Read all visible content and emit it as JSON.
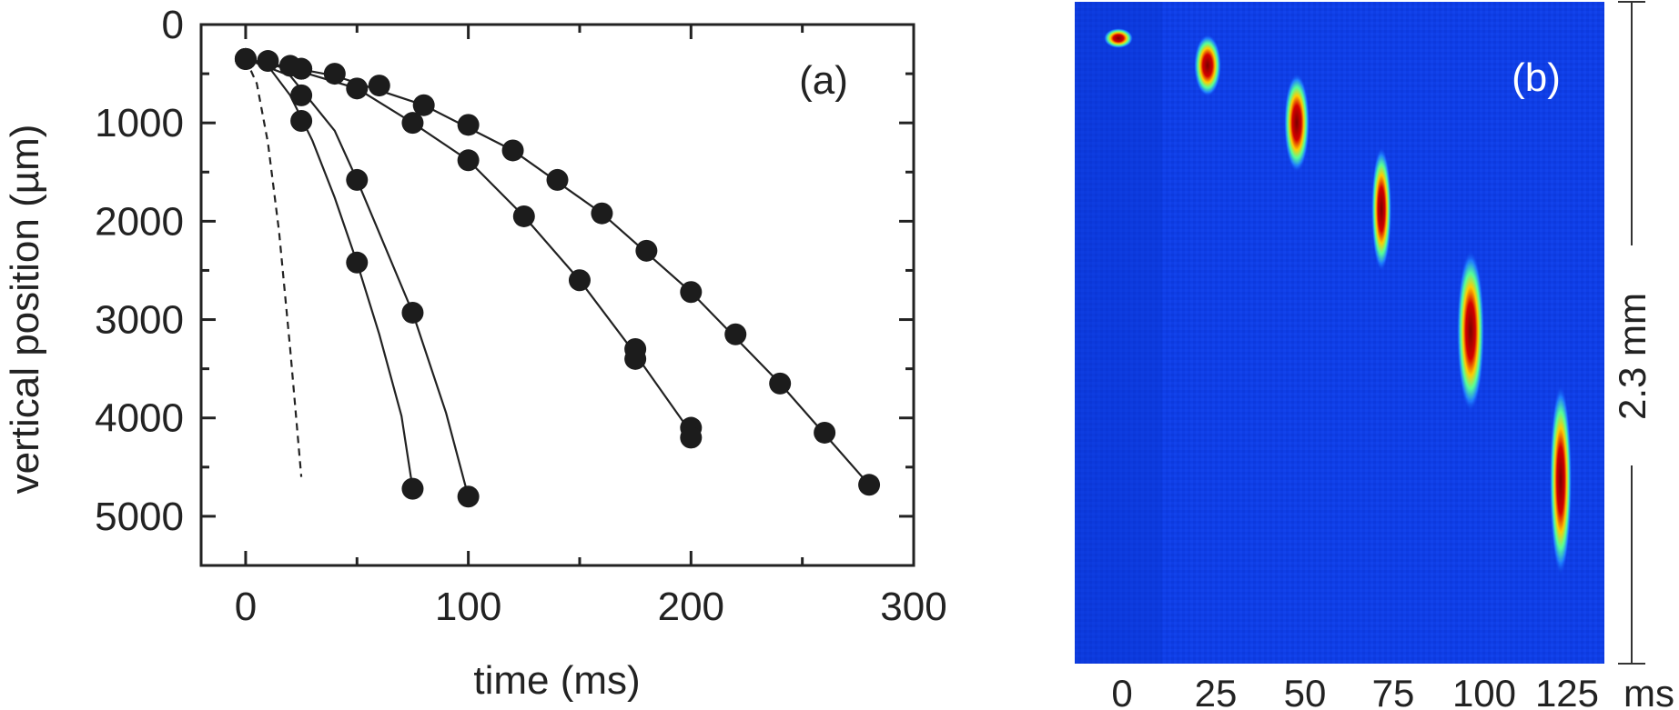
{
  "chart_data": [
    {
      "panel": "(a)",
      "type": "scatter",
      "panel_label": "(a)",
      "xlabel": "time (ms)",
      "ylabel": "vertical position (µm)",
      "xlim": [
        -20,
        300
      ],
      "ylim": [
        5500,
        0
      ],
      "y_inverted": true,
      "x_ticks": [
        0,
        100,
        200,
        300
      ],
      "y_ticks": [
        0,
        1000,
        2000,
        3000,
        4000,
        5000
      ],
      "series": [
        {
          "points": [
            [
              0,
              350
            ],
            [
              10,
              370
            ],
            [
              25,
              720
            ],
            [
              25,
              980
            ],
            [
              50,
              2420
            ],
            [
              75,
              4720
            ]
          ]
        },
        {
          "points": [
            [
              0,
              350
            ],
            [
              25,
              450
            ],
            [
              50,
              1580
            ],
            [
              75,
              2930
            ],
            [
              100,
              4800
            ]
          ]
        },
        {
          "points": [
            [
              0,
              350
            ],
            [
              20,
              420
            ],
            [
              50,
              650
            ],
            [
              75,
              1000
            ],
            [
              100,
              1380
            ],
            [
              125,
              1950
            ],
            [
              150,
              2600
            ],
            [
              175,
              3300
            ],
            [
              175,
              3400
            ],
            [
              200,
              4100
            ],
            [
              200,
              4200
            ]
          ]
        },
        {
          "points": [
            [
              0,
              350
            ],
            [
              25,
              450
            ],
            [
              40,
              500
            ],
            [
              60,
              620
            ],
            [
              80,
              820
            ],
            [
              100,
              1020
            ],
            [
              120,
              1280
            ],
            [
              140,
              1580
            ],
            [
              160,
              1920
            ],
            [
              180,
              2300
            ],
            [
              200,
              2720
            ],
            [
              220,
              3150
            ],
            [
              240,
              3650
            ],
            [
              260,
              4150
            ],
            [
              280,
              4680
            ]
          ]
        }
      ],
      "fit_curves": [
        {
          "style": "solid",
          "points": [
            [
              0,
              350
            ],
            [
              10,
              420
            ],
            [
              20,
              720
            ],
            [
              30,
              1180
            ],
            [
              40,
              1760
            ],
            [
              50,
              2420
            ],
            [
              60,
              3150
            ],
            [
              70,
              3980
            ],
            [
              75,
              4720
            ]
          ]
        },
        {
          "style": "solid",
          "points": [
            [
              0,
              350
            ],
            [
              20,
              520
            ],
            [
              40,
              1080
            ],
            [
              50,
              1580
            ],
            [
              60,
              2120
            ],
            [
              75,
              2930
            ],
            [
              90,
              3950
            ],
            [
              100,
              4800
            ]
          ]
        },
        {
          "style": "solid",
          "points": [
            [
              0,
              350
            ],
            [
              25,
              480
            ],
            [
              50,
              650
            ],
            [
              75,
              1000
            ],
            [
              100,
              1380
            ],
            [
              125,
              1950
            ],
            [
              150,
              2600
            ],
            [
              175,
              3350
            ],
            [
              200,
              4150
            ]
          ]
        },
        {
          "style": "solid",
          "points": [
            [
              0,
              350
            ],
            [
              40,
              520
            ],
            [
              80,
              820
            ],
            [
              120,
              1280
            ],
            [
              160,
              1920
            ],
            [
              200,
              2720
            ],
            [
              240,
              3650
            ],
            [
              280,
              4680
            ]
          ]
        },
        {
          "style": "dashed",
          "points": [
            [
              0,
              350
            ],
            [
              5,
              600
            ],
            [
              10,
              1200
            ],
            [
              15,
              2100
            ],
            [
              20,
              3300
            ],
            [
              25,
              4600
            ]
          ]
        }
      ]
    },
    {
      "panel": "(b)",
      "type": "heatmap",
      "panel_label": "(b)",
      "x_tick_labels": [
        "0",
        "25",
        "50",
        "75",
        "100",
        "125"
      ],
      "x_unit": "ms",
      "scale_bar_label": "2.3 mm"
    }
  ]
}
